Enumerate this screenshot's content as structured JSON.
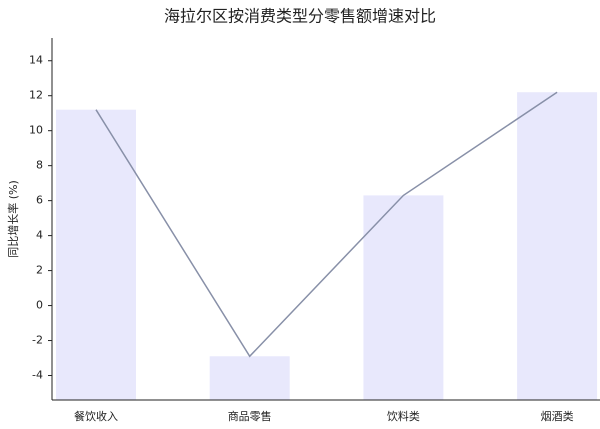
{
  "chart_data": {
    "type": "bar",
    "title": "海拉尔区按消费类型分零售额增速对比",
    "y_label": "同比增长率 (%)",
    "categories": [
      "餐饮收入",
      "商品零售",
      "饮料类",
      "烟酒类"
    ],
    "series": [
      {
        "type": "bar",
        "color": "#e8e8fc",
        "values": [
          11.2,
          -2.9,
          6.3,
          12.2
        ]
      },
      {
        "type": "line",
        "color": "#8890a8",
        "values": [
          11.2,
          -2.9,
          6.3,
          12.2
        ]
      }
    ],
    "ylim": [
      -5.4,
      15.3
    ],
    "yticks": [
      -4,
      -2,
      0,
      2,
      4,
      6,
      8,
      10,
      12,
      14
    ]
  }
}
